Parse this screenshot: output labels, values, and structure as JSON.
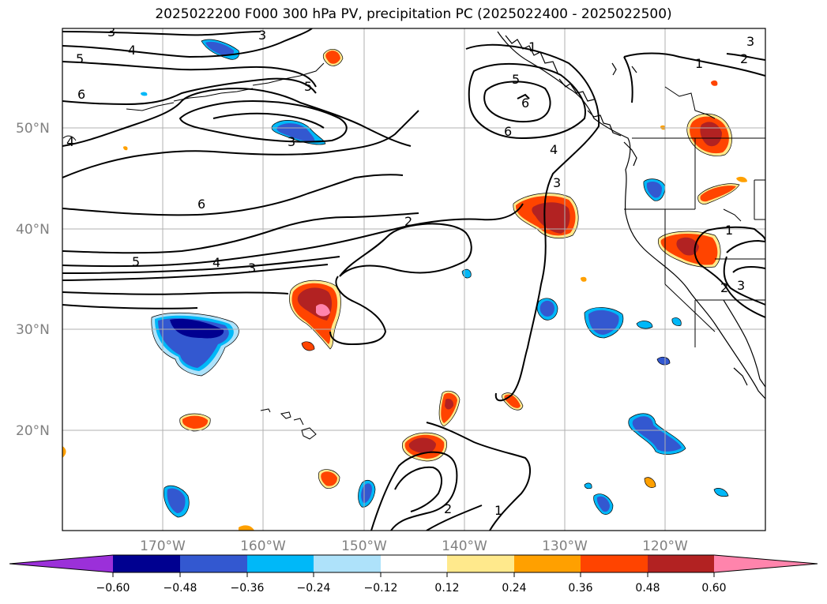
{
  "title": "2025022200 F000 300 hPa PV, precipitation PC (2025022400 - 2025022500)",
  "lat_labels": [
    "50°N",
    "40°N",
    "30°N",
    "20°N"
  ],
  "lon_labels": [
    "170°W",
    "160°W",
    "150°W",
    "140°W",
    "130°W",
    "120°W"
  ],
  "colorbar": {
    "tick_labels": [
      "−0.60",
      "−0.48",
      "−0.36",
      "−0.24",
      "−0.12",
      "0.12",
      "0.24",
      "0.36",
      "0.48",
      "0.60"
    ],
    "colors": [
      "#9b30d9",
      "#000090",
      "#3358d0",
      "#00b8f8",
      "#aee2fa",
      "#ffffff",
      "#ffe98c",
      "#ffa000",
      "#ff4400",
      "#b22222",
      "#ff84ac"
    ]
  },
  "contour_labels": [
    "1",
    "2",
    "3",
    "4",
    "5",
    "6"
  ]
}
